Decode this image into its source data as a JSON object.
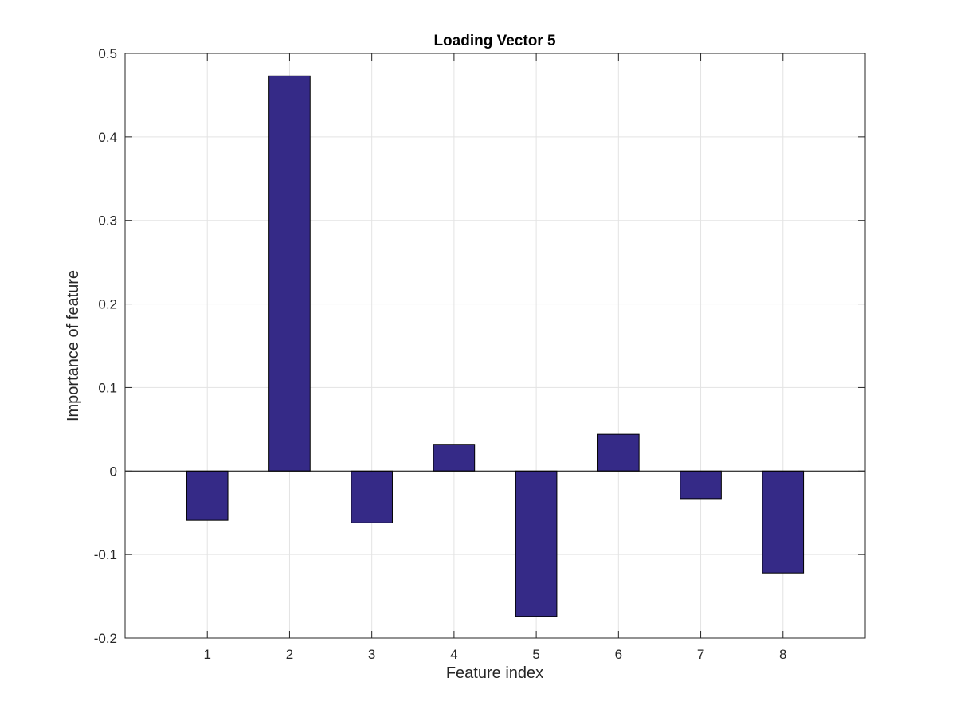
{
  "chart_data": {
    "type": "bar",
    "title": "Loading Vector 5",
    "xlabel": "Feature index",
    "ylabel": "Importance of feature",
    "categories": [
      "1",
      "2",
      "3",
      "4",
      "5",
      "6",
      "7",
      "8"
    ],
    "x": [
      1,
      2,
      3,
      4,
      5,
      6,
      7,
      8
    ],
    "values": [
      -0.059,
      0.473,
      -0.062,
      0.032,
      -0.174,
      0.044,
      -0.033,
      -0.122
    ],
    "xlim": [
      0,
      9
    ],
    "ylim": [
      -0.2,
      0.5
    ],
    "yticks": [
      -0.2,
      -0.1,
      0,
      0.1,
      0.2,
      0.3,
      0.4,
      0.5
    ],
    "ytick_labels": [
      "-0.2",
      "-0.1",
      "0",
      "0.1",
      "0.2",
      "0.3",
      "0.4",
      "0.5"
    ],
    "grid": true,
    "bar_color": "#352a87",
    "edge_color": "#000000"
  }
}
